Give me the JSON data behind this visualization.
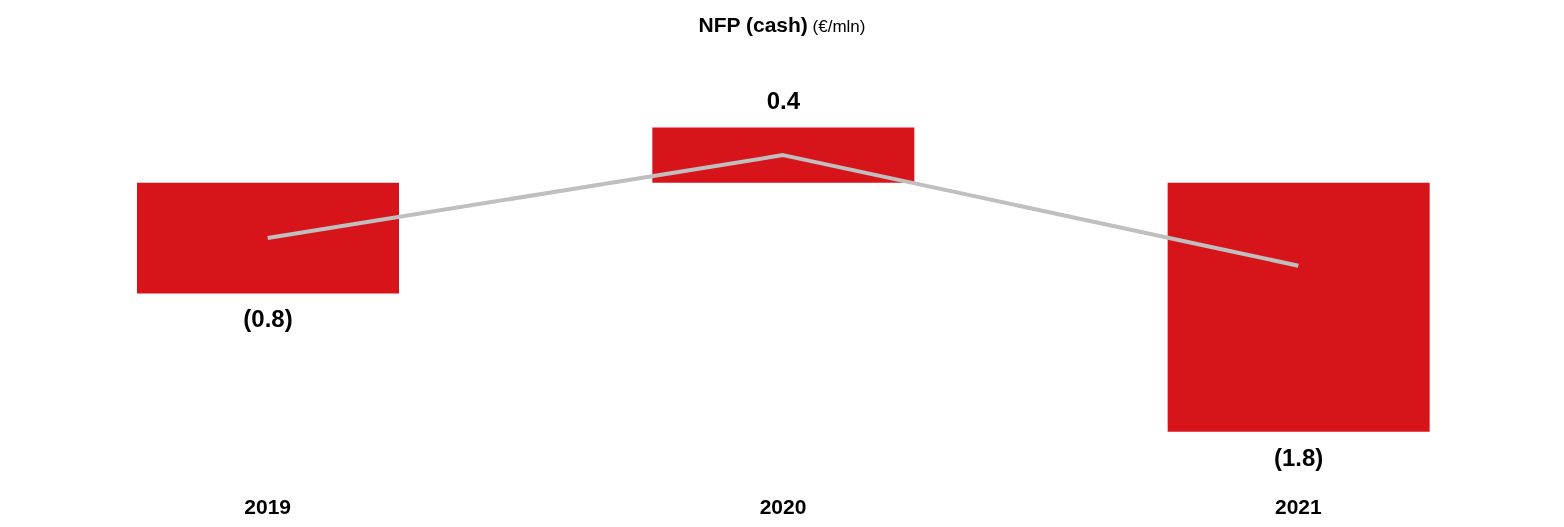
{
  "chart_data": {
    "type": "bar",
    "title": "NFP (cash)",
    "subtitle": "(€/mln)",
    "categories": [
      "2019",
      "2020",
      "2021"
    ],
    "series": [
      {
        "color": "#d7141a",
        "values": [
          -0.8,
          0.4,
          -1.8
        ],
        "value_labels": [
          "(0.8)",
          "0.4",
          "(1.8)"
        ]
      },
      {
        "type": "line",
        "color": "#bfbfbf",
        "values": [
          -0.4,
          0.2,
          -0.6
        ],
        "marker": "none"
      }
    ],
    "tick_labels": "x",
    "legend": false
  }
}
